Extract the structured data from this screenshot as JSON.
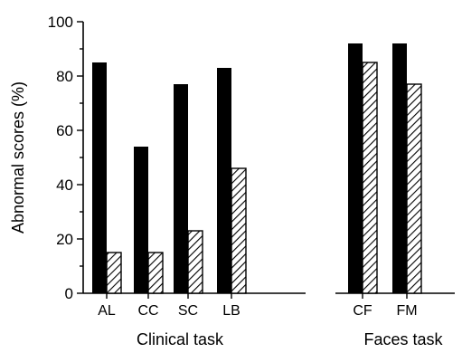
{
  "chart_data": [
    {
      "type": "bar",
      "ylabel": "Abnormal scores (%)",
      "xlabel": "Clinical task",
      "ylim": [
        0,
        100
      ],
      "yticks": [
        0,
        20,
        40,
        60,
        80,
        100
      ],
      "categories": [
        "AL",
        "CC",
        "SC",
        "LB"
      ],
      "series": [
        {
          "fill": "solid",
          "color": "#000000",
          "values": [
            85,
            54,
            77,
            83
          ]
        },
        {
          "fill": "hatched",
          "color": "#000000",
          "values": [
            15,
            15,
            23,
            46
          ]
        }
      ],
      "grid": false
    },
    {
      "type": "bar",
      "xlabel": "Faces task",
      "ylim": [
        0,
        100
      ],
      "categories": [
        "CF",
        "FM"
      ],
      "series": [
        {
          "fill": "solid",
          "color": "#000000",
          "values": [
            92,
            92
          ]
        },
        {
          "fill": "hatched",
          "color": "#000000",
          "values": [
            85,
            77
          ]
        }
      ],
      "grid": false
    }
  ]
}
